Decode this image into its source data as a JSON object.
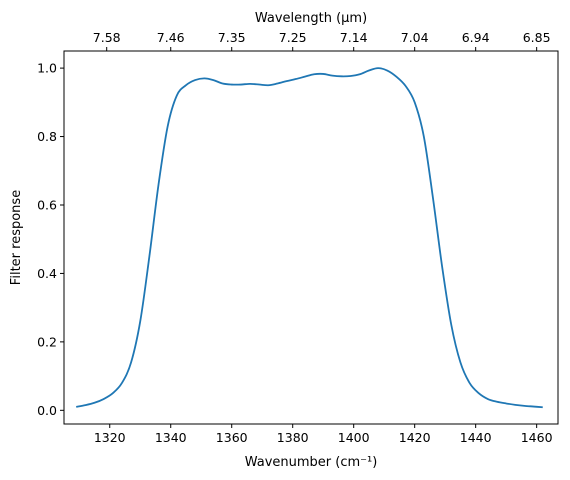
{
  "chart_data": {
    "type": "line",
    "xlabel": "Wavenumber (cm⁻¹)",
    "ylabel": "Filter response",
    "top_axis_label": "Wavelength (μm)",
    "xlim": [
      1305,
      1467
    ],
    "ylim": [
      -0.04,
      1.05
    ],
    "x_ticks": [
      1320,
      1340,
      1360,
      1380,
      1400,
      1420,
      1440,
      1460
    ],
    "x_tick_labels": [
      "1320",
      "1340",
      "1360",
      "1380",
      "1400",
      "1420",
      "1440",
      "1460"
    ],
    "y_ticks": [
      0.0,
      0.2,
      0.4,
      0.6,
      0.8,
      1.0
    ],
    "y_tick_labels": [
      "0.0",
      "0.2",
      "0.4",
      "0.6",
      "0.8",
      "1.0"
    ],
    "top_ticks": [
      1319,
      1340,
      1360,
      1380,
      1400,
      1420,
      1440,
      1460
    ],
    "top_tick_labels": [
      "7.58",
      "7.46",
      "7.35",
      "7.25",
      "7.14",
      "7.04",
      "6.94",
      "6.85"
    ],
    "grid": false,
    "line_color": "#1f77b4",
    "series": [
      {
        "x": [
          1309,
          1312,
          1315,
          1318,
          1321,
          1324,
          1327,
          1330,
          1333,
          1336,
          1339,
          1342,
          1345,
          1348,
          1351,
          1354,
          1357,
          1360,
          1363,
          1366,
          1369,
          1372,
          1375,
          1378,
          1381,
          1384,
          1387,
          1390,
          1393,
          1396,
          1399,
          1402,
          1405,
          1408,
          1411,
          1414,
          1417,
          1420,
          1423,
          1426,
          1429,
          1432,
          1435,
          1438,
          1441,
          1444,
          1447,
          1450,
          1453,
          1456,
          1459,
          1462
        ],
        "y": [
          0.01,
          0.015,
          0.022,
          0.033,
          0.05,
          0.08,
          0.14,
          0.26,
          0.45,
          0.66,
          0.83,
          0.92,
          0.95,
          0.965,
          0.97,
          0.965,
          0.955,
          0.952,
          0.952,
          0.954,
          0.952,
          0.95,
          0.955,
          0.962,
          0.968,
          0.975,
          0.982,
          0.983,
          0.978,
          0.976,
          0.977,
          0.982,
          0.993,
          1.0,
          0.993,
          0.975,
          0.948,
          0.9,
          0.8,
          0.62,
          0.42,
          0.25,
          0.14,
          0.08,
          0.05,
          0.033,
          0.025,
          0.02,
          0.016,
          0.013,
          0.011,
          0.009
        ]
      }
    ]
  }
}
